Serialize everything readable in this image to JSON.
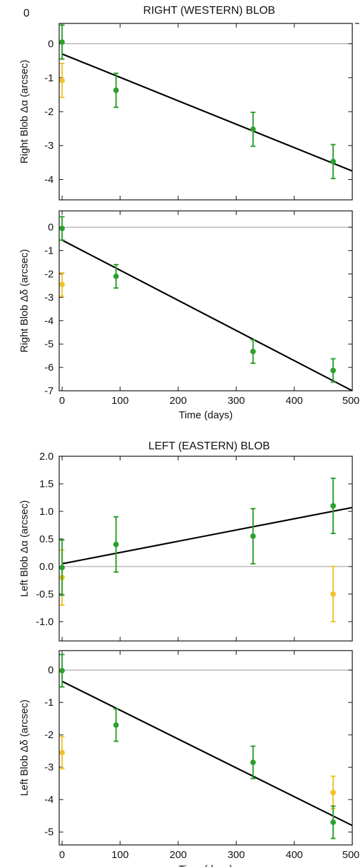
{
  "figure": {
    "titles": [
      "RIGHT (WESTERN) BLOB",
      "LEFT (EASTERN) BLOB"
    ],
    "stray_label": "0"
  },
  "colors": {
    "green": "#2ca02c",
    "yellow": "#f2c229",
    "fit_line": "#000000",
    "zero_line": "#9a9a9a"
  },
  "chart_data": [
    {
      "type": "scatter",
      "group_title": "RIGHT (WESTERN) BLOB",
      "ylabel": "Right Blob Δα (arcsec)",
      "xlabel": "",
      "xlim": [
        -5,
        500
      ],
      "ylim": [
        -4.6,
        0.6
      ],
      "yticks": [
        0,
        -1,
        -2,
        -3,
        -4
      ],
      "xticks": [
        0,
        100,
        200,
        300,
        400,
        500
      ],
      "show_x_tick_labels": false,
      "zero_line": true,
      "series": [
        {
          "color": "green",
          "points": [
            {
              "x": 0,
              "y": 0.05,
              "err": 0.5
            },
            {
              "x": 93,
              "y": -1.37,
              "err": 0.5
            },
            {
              "x": 329,
              "y": -2.52,
              "err": 0.5
            },
            {
              "x": 467,
              "y": -3.47,
              "err": 0.5
            }
          ]
        },
        {
          "color": "yellow",
          "points": [
            {
              "x": 0,
              "y": -1.08,
              "err": 0.5
            }
          ]
        }
      ],
      "fit": {
        "x": [
          0,
          500
        ],
        "y": [
          -0.3,
          -3.75
        ]
      }
    },
    {
      "type": "scatter",
      "ylabel": "Right Blob Δδ (arcsec)",
      "xlabel": "Time (days)",
      "xlim": [
        -5,
        500
      ],
      "ylim": [
        -7,
        0.7
      ],
      "yticks": [
        0,
        -1,
        -2,
        -3,
        -4,
        -5,
        -6,
        -7
      ],
      "xticks": [
        0,
        100,
        200,
        300,
        400,
        500
      ],
      "show_x_tick_labels": true,
      "zero_line": true,
      "series": [
        {
          "color": "green",
          "points": [
            {
              "x": 0,
              "y": -0.05,
              "err": 0.5
            },
            {
              "x": 93,
              "y": -2.1,
              "err": 0.5
            },
            {
              "x": 329,
              "y": -5.32,
              "err": 0.5
            },
            {
              "x": 467,
              "y": -6.13,
              "err": 0.5
            }
          ]
        },
        {
          "color": "yellow",
          "points": [
            {
              "x": 0,
              "y": -2.45,
              "err": 0.5
            }
          ]
        }
      ],
      "fit": {
        "x": [
          0,
          500
        ],
        "y": [
          -0.55,
          -7.0
        ]
      }
    },
    {
      "type": "scatter",
      "group_title": "LEFT (EASTERN) BLOB",
      "ylabel": "Left Blob Δα (arcsec)",
      "xlabel": "",
      "xlim": [
        -5,
        500
      ],
      "ylim": [
        -1.35,
        2.0
      ],
      "yticks": [
        2.0,
        1.5,
        1.0,
        0.5,
        0.0,
        -0.5,
        -1.0
      ],
      "ytick_labels": [
        "2.0",
        "1.5",
        "1.0",
        "0.5",
        "0.0",
        "-0.5",
        "-1.0"
      ],
      "xticks": [
        0,
        100,
        200,
        300,
        400,
        500
      ],
      "show_x_tick_labels": false,
      "zero_line": true,
      "series": [
        {
          "color": "green",
          "points": [
            {
              "x": 0,
              "y": -0.02,
              "err": 0.5
            },
            {
              "x": 93,
              "y": 0.4,
              "err": 0.5
            },
            {
              "x": 329,
              "y": 0.55,
              "err": 0.5
            },
            {
              "x": 467,
              "y": 1.1,
              "err": 0.5
            }
          ]
        },
        {
          "color": "yellow",
          "points": [
            {
              "x": 0,
              "y": -0.2,
              "err": 0.5
            },
            {
              "x": 467,
              "y": -0.5,
              "err": 0.5
            }
          ]
        }
      ],
      "fit": {
        "x": [
          0,
          500
        ],
        "y": [
          0.05,
          1.07
        ]
      }
    },
    {
      "type": "scatter",
      "ylabel": "Left Blob Δδ (arcsec)",
      "xlabel": "Time (days)",
      "xlim": [
        -5,
        500
      ],
      "ylim": [
        -5.4,
        0.6
      ],
      "yticks": [
        0,
        -1,
        -2,
        -3,
        -4,
        -5
      ],
      "xticks": [
        0,
        100,
        200,
        300,
        400,
        500
      ],
      "show_x_tick_labels": true,
      "zero_line": true,
      "series": [
        {
          "color": "green",
          "points": [
            {
              "x": 0,
              "y": -0.02,
              "err": 0.5
            },
            {
              "x": 93,
              "y": -1.7,
              "err": 0.5
            },
            {
              "x": 329,
              "y": -2.85,
              "err": 0.5
            },
            {
              "x": 467,
              "y": -4.7,
              "err": 0.5
            }
          ]
        },
        {
          "color": "yellow",
          "points": [
            {
              "x": 0,
              "y": -2.55,
              "err": 0.5
            },
            {
              "x": 467,
              "y": -3.78,
              "err": 0.5
            }
          ]
        }
      ],
      "fit": {
        "x": [
          0,
          500
        ],
        "y": [
          -0.35,
          -4.8
        ]
      }
    }
  ]
}
